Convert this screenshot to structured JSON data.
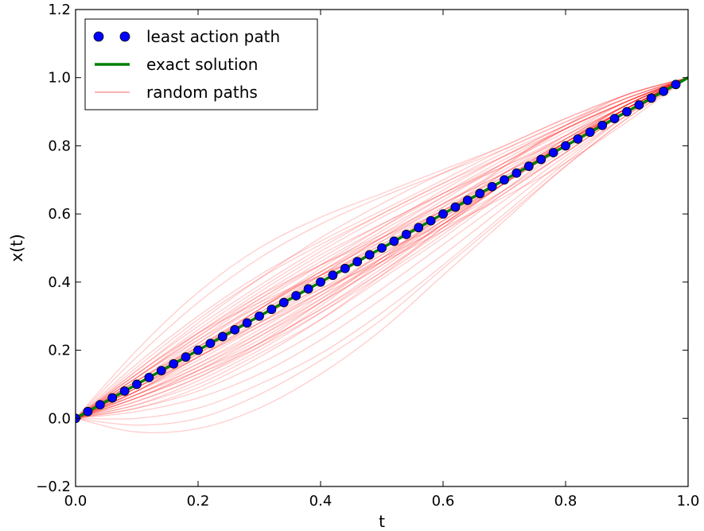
{
  "chart_data": {
    "type": "line",
    "title": "",
    "xlabel": "t",
    "ylabel": "x(t)",
    "xlim": [
      0.0,
      1.0
    ],
    "ylim": [
      -0.2,
      1.2
    ],
    "xticks": [
      "0.0",
      "0.2",
      "0.4",
      "0.6",
      "0.8",
      "1.0"
    ],
    "yticks": [
      "−0.2",
      "0.0",
      "0.2",
      "0.4",
      "0.6",
      "0.8",
      "1.0",
      "1.2"
    ],
    "grid": false,
    "legend": {
      "placement": "top-left",
      "entries": [
        {
          "label": "least action path",
          "style": "markers",
          "color": "#0000ff"
        },
        {
          "label": "exact solution",
          "style": "line",
          "color": "#008000"
        },
        {
          "label": "random paths",
          "style": "line",
          "color": "#ff9999"
        }
      ]
    },
    "series": [
      {
        "name": "least action path",
        "style": "markers",
        "color": "#0000ff",
        "x": [
          0.0,
          0.02,
          0.04,
          0.06,
          0.08,
          0.1,
          0.12,
          0.14,
          0.16,
          0.18,
          0.2,
          0.22,
          0.24,
          0.26,
          0.28,
          0.3,
          0.32,
          0.34,
          0.36,
          0.38,
          0.4,
          0.42,
          0.44,
          0.46,
          0.48,
          0.5,
          0.52,
          0.54,
          0.56,
          0.58,
          0.6,
          0.62,
          0.64,
          0.66,
          0.68,
          0.7,
          0.72,
          0.74,
          0.76,
          0.78,
          0.8,
          0.82,
          0.84,
          0.86,
          0.88,
          0.9,
          0.92,
          0.94,
          0.96,
          0.98
        ],
        "y": [
          0.0,
          0.02,
          0.04,
          0.06,
          0.08,
          0.1,
          0.12,
          0.14,
          0.16,
          0.18,
          0.2,
          0.22,
          0.24,
          0.26,
          0.28,
          0.3,
          0.32,
          0.34,
          0.36,
          0.38,
          0.4,
          0.42,
          0.44,
          0.46,
          0.48,
          0.5,
          0.52,
          0.54,
          0.56,
          0.58,
          0.6,
          0.62,
          0.64,
          0.66,
          0.68,
          0.7,
          0.72,
          0.74,
          0.76,
          0.78,
          0.8,
          0.82,
          0.84,
          0.86,
          0.88,
          0.9,
          0.92,
          0.94,
          0.96,
          0.98
        ]
      },
      {
        "name": "exact solution",
        "style": "line",
        "color": "#008000",
        "x": [
          0.0,
          1.0
        ],
        "y": [
          0.0,
          1.0
        ]
      }
    ],
    "random_paths": {
      "name": "random paths",
      "color": "#ff0000",
      "x": [
        0.0,
        0.1,
        0.2,
        0.3,
        0.4,
        0.5,
        0.6,
        0.7,
        0.8,
        0.9,
        1.0
      ],
      "paths": [
        [
          0.0,
          0.2,
          0.37,
          0.5,
          0.59,
          0.66,
          0.73,
          0.8,
          0.88,
          0.95,
          1.0
        ],
        [
          0.0,
          0.18,
          0.34,
          0.47,
          0.57,
          0.65,
          0.72,
          0.79,
          0.87,
          0.95,
          1.0
        ],
        [
          0.0,
          0.16,
          0.3,
          0.42,
          0.52,
          0.61,
          0.7,
          0.79,
          0.87,
          0.94,
          1.0
        ],
        [
          0.0,
          0.14,
          0.28,
          0.41,
          0.53,
          0.63,
          0.72,
          0.8,
          0.88,
          0.95,
          1.0
        ],
        [
          0.0,
          0.13,
          0.26,
          0.38,
          0.49,
          0.59,
          0.68,
          0.77,
          0.86,
          0.94,
          1.0
        ],
        [
          0.0,
          0.12,
          0.25,
          0.37,
          0.48,
          0.57,
          0.66,
          0.74,
          0.82,
          0.91,
          1.0
        ],
        [
          0.0,
          0.11,
          0.23,
          0.35,
          0.46,
          0.56,
          0.66,
          0.76,
          0.85,
          0.93,
          1.0
        ],
        [
          0.0,
          0.1,
          0.22,
          0.34,
          0.45,
          0.56,
          0.67,
          0.77,
          0.86,
          0.94,
          1.0
        ],
        [
          0.0,
          0.09,
          0.2,
          0.32,
          0.43,
          0.54,
          0.65,
          0.75,
          0.85,
          0.93,
          1.0
        ],
        [
          0.0,
          0.08,
          0.19,
          0.3,
          0.41,
          0.52,
          0.63,
          0.73,
          0.83,
          0.92,
          1.0
        ],
        [
          0.0,
          0.09,
          0.18,
          0.28,
          0.38,
          0.48,
          0.58,
          0.69,
          0.8,
          0.91,
          1.0
        ],
        [
          0.0,
          0.07,
          0.16,
          0.26,
          0.37,
          0.48,
          0.59,
          0.7,
          0.8,
          0.9,
          1.0
        ],
        [
          0.0,
          0.06,
          0.14,
          0.24,
          0.35,
          0.47,
          0.59,
          0.7,
          0.81,
          0.91,
          1.0
        ],
        [
          0.0,
          0.06,
          0.13,
          0.22,
          0.32,
          0.43,
          0.55,
          0.67,
          0.79,
          0.9,
          1.0
        ],
        [
          0.0,
          0.04,
          0.1,
          0.19,
          0.29,
          0.41,
          0.53,
          0.66,
          0.78,
          0.9,
          1.0
        ],
        [
          0.0,
          0.03,
          0.08,
          0.16,
          0.26,
          0.38,
          0.51,
          0.64,
          0.77,
          0.89,
          1.0
        ],
        [
          0.0,
          0.02,
          0.06,
          0.13,
          0.23,
          0.35,
          0.48,
          0.62,
          0.76,
          0.89,
          1.0
        ],
        [
          0.0,
          0.0,
          0.03,
          0.1,
          0.19,
          0.31,
          0.45,
          0.6,
          0.75,
          0.89,
          1.0
        ],
        [
          0.0,
          -0.02,
          0.0,
          0.07,
          0.17,
          0.29,
          0.44,
          0.59,
          0.74,
          0.88,
          1.0
        ],
        [
          0.0,
          -0.04,
          -0.03,
          0.03,
          0.13,
          0.26,
          0.42,
          0.58,
          0.74,
          0.88,
          1.0
        ],
        [
          0.0,
          0.15,
          0.29,
          0.41,
          0.51,
          0.6,
          0.69,
          0.77,
          0.85,
          0.93,
          1.0
        ],
        [
          0.0,
          0.12,
          0.24,
          0.35,
          0.45,
          0.54,
          0.63,
          0.72,
          0.81,
          0.91,
          1.0
        ],
        [
          0.0,
          0.1,
          0.21,
          0.32,
          0.43,
          0.53,
          0.62,
          0.71,
          0.8,
          0.9,
          1.0
        ],
        [
          0.0,
          0.08,
          0.17,
          0.27,
          0.37,
          0.47,
          0.56,
          0.65,
          0.75,
          0.87,
          1.0
        ],
        [
          0.0,
          0.11,
          0.21,
          0.3,
          0.38,
          0.46,
          0.55,
          0.66,
          0.78,
          0.9,
          1.0
        ],
        [
          0.0,
          0.13,
          0.25,
          0.34,
          0.42,
          0.49,
          0.57,
          0.67,
          0.78,
          0.9,
          1.0
        ],
        [
          0.0,
          0.07,
          0.15,
          0.25,
          0.36,
          0.49,
          0.62,
          0.74,
          0.85,
          0.93,
          1.0
        ],
        [
          0.0,
          0.05,
          0.12,
          0.21,
          0.33,
          0.46,
          0.6,
          0.74,
          0.86,
          0.95,
          1.0
        ],
        [
          0.0,
          0.09,
          0.19,
          0.3,
          0.42,
          0.53,
          0.63,
          0.72,
          0.81,
          0.9,
          1.0
        ],
        [
          0.0,
          0.06,
          0.14,
          0.23,
          0.34,
          0.45,
          0.57,
          0.69,
          0.8,
          0.91,
          1.0
        ],
        [
          0.0,
          0.11,
          0.22,
          0.33,
          0.43,
          0.52,
          0.61,
          0.7,
          0.8,
          0.9,
          1.0
        ],
        [
          0.0,
          0.08,
          0.18,
          0.28,
          0.39,
          0.5,
          0.61,
          0.72,
          0.82,
          0.92,
          1.0
        ],
        [
          0.0,
          0.04,
          0.11,
          0.2,
          0.31,
          0.43,
          0.56,
          0.69,
          0.81,
          0.92,
          1.0
        ],
        [
          0.0,
          0.12,
          0.23,
          0.33,
          0.42,
          0.5,
          0.59,
          0.69,
          0.8,
          0.91,
          1.0
        ],
        [
          0.0,
          0.1,
          0.2,
          0.31,
          0.42,
          0.53,
          0.64,
          0.75,
          0.85,
          0.93,
          1.0
        ],
        [
          0.0,
          0.09,
          0.18,
          0.27,
          0.36,
          0.46,
          0.57,
          0.69,
          0.81,
          0.92,
          1.0
        ],
        [
          0.0,
          0.07,
          0.15,
          0.24,
          0.34,
          0.45,
          0.57,
          0.69,
          0.81,
          0.91,
          1.0
        ],
        [
          0.0,
          0.14,
          0.27,
          0.39,
          0.5,
          0.6,
          0.69,
          0.78,
          0.86,
          0.94,
          1.0
        ],
        [
          0.0,
          0.05,
          0.12,
          0.22,
          0.34,
          0.47,
          0.6,
          0.72,
          0.83,
          0.93,
          1.0
        ],
        [
          0.0,
          0.1,
          0.19,
          0.28,
          0.37,
          0.47,
          0.58,
          0.7,
          0.82,
          0.92,
          1.0
        ],
        [
          0.0,
          0.12,
          0.24,
          0.36,
          0.47,
          0.57,
          0.66,
          0.75,
          0.84,
          0.93,
          1.0
        ],
        [
          0.0,
          0.08,
          0.16,
          0.25,
          0.35,
          0.46,
          0.58,
          0.7,
          0.81,
          0.91,
          1.0
        ],
        [
          0.0,
          0.06,
          0.13,
          0.21,
          0.31,
          0.42,
          0.54,
          0.67,
          0.8,
          0.91,
          1.0
        ],
        [
          0.0,
          0.11,
          0.21,
          0.31,
          0.41,
          0.51,
          0.61,
          0.71,
          0.81,
          0.91,
          1.0
        ],
        [
          0.0,
          0.09,
          0.2,
          0.32,
          0.44,
          0.55,
          0.65,
          0.74,
          0.83,
          0.92,
          1.0
        ],
        [
          0.0,
          0.07,
          0.14,
          0.22,
          0.32,
          0.44,
          0.57,
          0.7,
          0.82,
          0.92,
          1.0
        ],
        [
          0.0,
          0.13,
          0.25,
          0.36,
          0.45,
          0.53,
          0.61,
          0.7,
          0.8,
          0.91,
          1.0
        ],
        [
          0.0,
          0.03,
          0.09,
          0.18,
          0.29,
          0.42,
          0.56,
          0.69,
          0.81,
          0.92,
          1.0
        ],
        [
          0.0,
          0.1,
          0.21,
          0.32,
          0.42,
          0.51,
          0.6,
          0.7,
          0.8,
          0.91,
          1.0
        ],
        [
          0.0,
          0.08,
          0.18,
          0.29,
          0.4,
          0.5,
          0.6,
          0.7,
          0.81,
          0.91,
          1.0
        ]
      ]
    }
  }
}
